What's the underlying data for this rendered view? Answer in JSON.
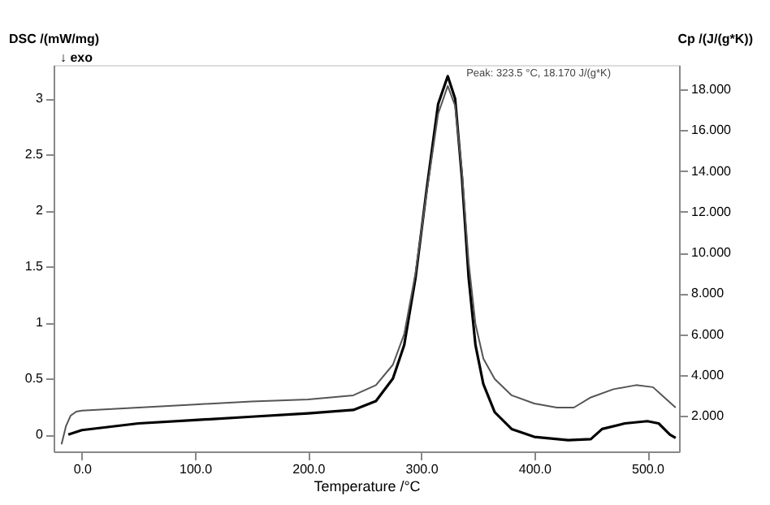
{
  "chart_data": {
    "type": "line",
    "xlabel": "Temperature /°C",
    "ylabel": "DSC /(mW/mg)",
    "y2label": "Cp /(J/(g*K))",
    "xlim": [
      -25,
      528
    ],
    "xticks": [
      {
        "value": 0,
        "label": "0.0"
      },
      {
        "value": 100,
        "label": "100.0"
      },
      {
        "value": 200,
        "label": "200.0"
      },
      {
        "value": 300,
        "label": "300.0"
      },
      {
        "value": 400,
        "label": "400.0"
      },
      {
        "value": 500,
        "label": "500.0"
      }
    ],
    "ylim": [
      -0.15,
      3.3
    ],
    "yticks": [
      0,
      0.5,
      1,
      1.5,
      2,
      2.5,
      3
    ],
    "y2lim": [
      0.25,
      19.2
    ],
    "y2ticks": [
      {
        "value": 2,
        "label": "2.000"
      },
      {
        "value": 4,
        "label": "4.000"
      },
      {
        "value": 6,
        "label": "6.000"
      },
      {
        "value": 8,
        "label": "8.000"
      },
      {
        "value": 10,
        "label": "10.000"
      },
      {
        "value": 12,
        "label": "12.000"
      },
      {
        "value": 14,
        "label": "14.000"
      },
      {
        "value": 16,
        "label": "16.000"
      },
      {
        "value": 18,
        "label": "18.000"
      }
    ],
    "grid": false,
    "legend": false,
    "marker": "none",
    "line_style": "solid",
    "annotations": [
      "↓ exo",
      "Peak: 323.5 °C, 18.170 J/(g*K)"
    ],
    "series": [
      {
        "color": "#000000",
        "axis": "y",
        "x": [
          -12,
          0,
          50,
          100,
          150,
          200,
          240,
          260,
          275,
          285,
          295,
          305,
          315,
          323.5,
          330,
          336,
          342,
          348,
          355,
          365,
          380,
          400,
          430,
          450,
          460,
          480,
          500,
          510,
          520,
          525
        ],
        "values": [
          0.0,
          0.04,
          0.1,
          0.13,
          0.16,
          0.19,
          0.22,
          0.3,
          0.5,
          0.8,
          1.4,
          2.2,
          2.95,
          3.2,
          3.0,
          2.3,
          1.4,
          0.8,
          0.45,
          0.2,
          0.05,
          -0.02,
          -0.05,
          -0.04,
          0.05,
          0.1,
          0.12,
          0.1,
          0.0,
          -0.03
        ]
      },
      {
        "color": "#555555",
        "axis": "y2",
        "x": [
          -18,
          -14,
          -10,
          -5,
          0,
          50,
          100,
          150,
          200,
          240,
          260,
          275,
          285,
          295,
          305,
          315,
          323.5,
          330,
          336,
          342,
          348,
          355,
          365,
          380,
          400,
          420,
          435,
          450,
          470,
          490,
          505,
          515,
          525
        ],
        "values": [
          0.6,
          1.5,
          2.0,
          2.2,
          2.25,
          2.4,
          2.55,
          2.7,
          2.8,
          3.0,
          3.5,
          4.5,
          6.0,
          9.0,
          13.0,
          16.8,
          18.17,
          17.2,
          14.0,
          9.5,
          6.5,
          4.8,
          3.8,
          3.0,
          2.6,
          2.4,
          2.4,
          2.9,
          3.3,
          3.5,
          3.4,
          2.9,
          2.4
        ]
      }
    ]
  }
}
